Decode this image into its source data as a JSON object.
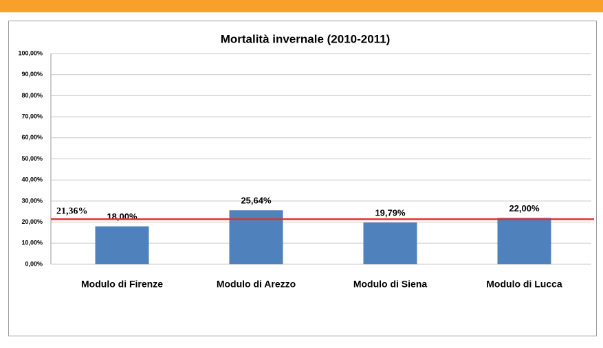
{
  "chart_data": {
    "type": "bar",
    "title": "Mortalità invernale (2010-2011)",
    "categories": [
      "Modulo di Firenze",
      "Modulo di Arezzo",
      "Modulo di Siena",
      "Modulo di Lucca"
    ],
    "values": [
      18,
      25.64,
      19.79,
      22
    ],
    "value_labels": [
      "18,00%",
      "25,64%",
      "19,79%",
      "22,00%"
    ],
    "color": "#4f81bd",
    "ylim": [
      0,
      100
    ],
    "yticks": [
      {
        "value": 0,
        "label": "0,00%"
      },
      {
        "value": 10,
        "label": "10,00%"
      },
      {
        "value": 20,
        "label": "20,00%"
      },
      {
        "value": 30,
        "label": "30,00%"
      },
      {
        "value": 40,
        "label": "40,00%"
      },
      {
        "value": 50,
        "label": "50,00%"
      },
      {
        "value": 60,
        "label": "60,00%"
      },
      {
        "value": 70,
        "label": "70,00%"
      },
      {
        "value": 80,
        "label": "80,00%"
      },
      {
        "value": 90,
        "label": "90,00%"
      },
      {
        "value": 100,
        "label": "100,00%"
      }
    ],
    "grid": true,
    "reference_line": {
      "value": 21.36,
      "label": "21,36%",
      "color": "#e03030"
    }
  }
}
